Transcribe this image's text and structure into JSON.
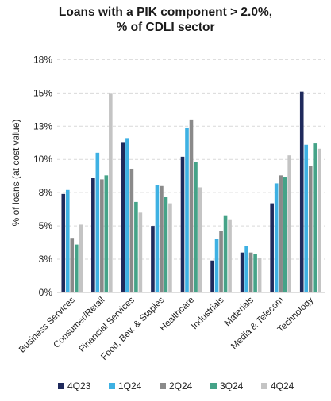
{
  "chart_data": {
    "type": "bar",
    "title": "Loans with a PIK component > 2.0%,",
    "subtitle": "% of CDLI sector",
    "ylabel": "% of loans (at cost value)",
    "xlabel": "",
    "ylim": [
      0,
      18
    ],
    "yticks": [
      0,
      2.5,
      5,
      7.5,
      10,
      12.5,
      15,
      17.5
    ],
    "ytick_labels": [
      "0%",
      "3%",
      "5%",
      "8%",
      "10%",
      "13%",
      "15%",
      "18%"
    ],
    "grid": true,
    "legend_position": "bottom",
    "categories": [
      "Business Services",
      "Consumer/Retail",
      "Financial Services",
      "Food, Bev. & Staples",
      "Healthcare",
      "Industrials",
      "Materials",
      "Media & Telecom",
      "Technology"
    ],
    "series": [
      {
        "name": "4Q23",
        "color": "#1f2a5c",
        "values": [
          7.4,
          8.6,
          11.3,
          5.0,
          10.2,
          2.4,
          3.0,
          6.7,
          15.1
        ]
      },
      {
        "name": "1Q24",
        "color": "#3eb1e3",
        "values": [
          7.7,
          10.5,
          11.6,
          8.1,
          12.4,
          4.0,
          3.5,
          8.2,
          11.1
        ]
      },
      {
        "name": "2Q24",
        "color": "#8a8a8a",
        "values": [
          4.1,
          8.5,
          9.3,
          8.0,
          13.0,
          4.6,
          3.0,
          8.8,
          9.5
        ]
      },
      {
        "name": "3Q24",
        "color": "#45a388",
        "values": [
          3.6,
          8.8,
          6.8,
          7.2,
          9.8,
          5.8,
          2.9,
          8.7,
          11.2
        ]
      },
      {
        "name": "4Q24",
        "color": "#c4c4c4",
        "values": [
          5.1,
          15.0,
          6.0,
          6.7,
          7.9,
          5.5,
          2.6,
          10.3,
          10.8
        ]
      }
    ]
  }
}
